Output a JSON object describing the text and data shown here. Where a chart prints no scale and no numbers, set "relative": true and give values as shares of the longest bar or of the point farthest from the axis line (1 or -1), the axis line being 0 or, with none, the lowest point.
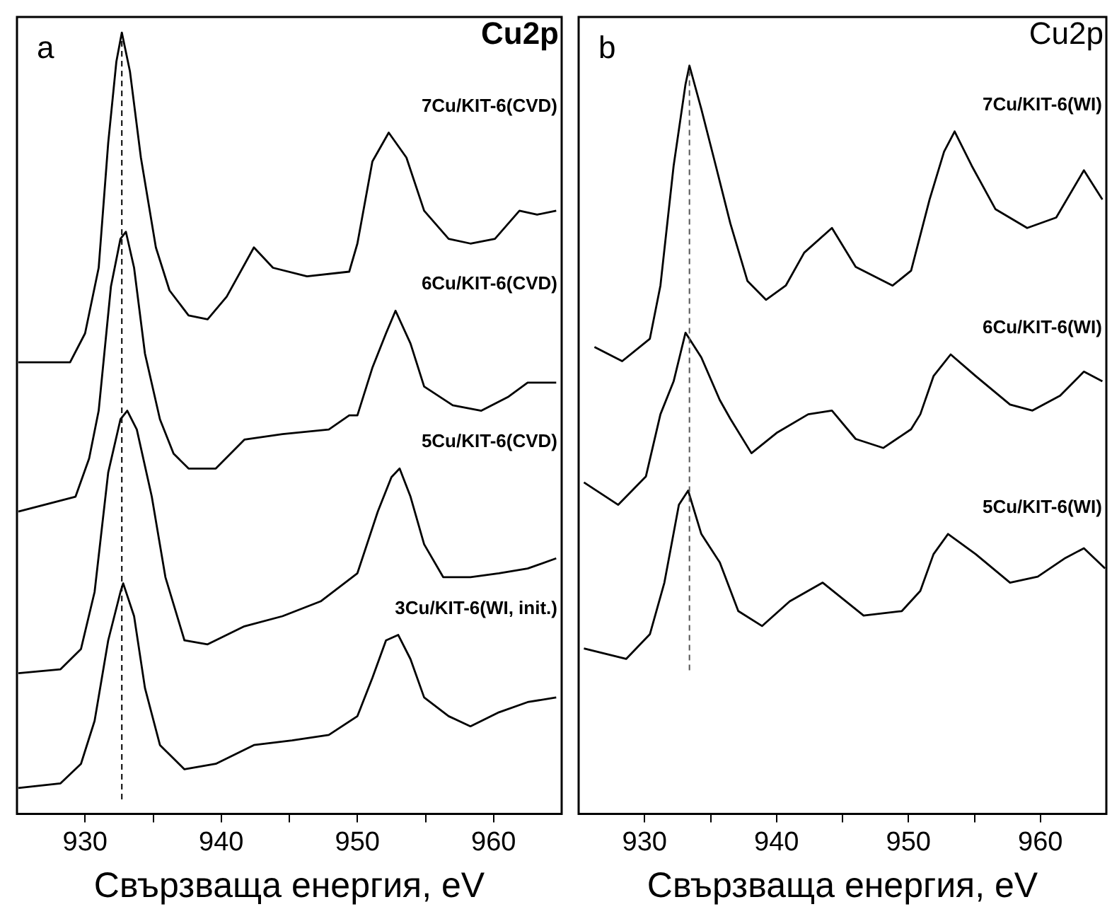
{
  "chart_data": [
    {
      "type": "line",
      "title": "Cu2p",
      "xlabel": "Свързваща енергия, eV",
      "annotations": [
        "a"
      ],
      "relative": true,
      "marker": "none",
      "legend": false,
      "grid": false,
      "tick_labels": "x",
      "xlim": [
        925,
        965
      ],
      "xticks": [
        930,
        {
          "value": 935,
          "label": null
        },
        940,
        {
          "value": 945,
          "label": null
        },
        950,
        {
          "value": 955,
          "label": null
        },
        960
      ],
      "ref_lines": [
        {
          "axis": "x",
          "value": 932.7,
          "color": "#000000",
          "line_style": "dashed"
        }
      ],
      "series": [
        {
          "name": "7Cu/KIT-6(CVD)",
          "color": "#000000",
          "x": [
            925.1,
            927.2,
            928.9,
            930,
            931.0,
            931.7,
            932.3,
            932.7,
            933.3,
            934.1,
            935.2,
            936.2,
            937.6,
            939.0,
            940.4,
            942.4,
            943.8,
            946.3,
            949.4,
            950.0,
            951.1,
            952.3,
            953.6,
            954.9,
            956.7,
            958.3,
            960.1,
            961.9,
            963.2,
            964.6
          ],
          "values": [
            0.578,
            0.578,
            0.578,
            0.615,
            0.699,
            0.859,
            0.963,
            1.0,
            0.95,
            0.84,
            0.725,
            0.67,
            0.638,
            0.633,
            0.662,
            0.725,
            0.699,
            0.688,
            0.694,
            0.73,
            0.835,
            0.872,
            0.84,
            0.772,
            0.736,
            0.73,
            0.736,
            0.772,
            0.767,
            0.772
          ]
        },
        {
          "name": "6Cu/KIT-6(CVD)",
          "color": "#000000",
          "x": [
            925.1,
            929.3,
            930.3,
            931.0,
            931.9,
            932.6,
            933.0,
            933.6,
            934.4,
            935.5,
            936.5,
            937.6,
            939.6,
            941.7,
            944.5,
            947.9,
            949.4,
            950.0,
            951.1,
            952.1,
            952.8,
            953.9,
            954.9,
            957.0,
            959.1,
            961.1,
            962.5,
            964.6
          ],
          "values": [
            0.387,
            0.406,
            0.455,
            0.516,
            0.675,
            0.736,
            0.745,
            0.699,
            0.589,
            0.505,
            0.461,
            0.442,
            0.442,
            0.479,
            0.486,
            0.492,
            0.51,
            0.51,
            0.571,
            0.615,
            0.644,
            0.602,
            0.547,
            0.523,
            0.516,
            0.534,
            0.552,
            0.552
          ]
        },
        {
          "name": "5Cu/KIT-6(CVD)",
          "color": "#000000",
          "x": [
            925.1,
            928.2,
            929.7,
            930.7,
            931.7,
            932.6,
            933.1,
            933.8,
            934.9,
            935.9,
            937.3,
            939.0,
            941.7,
            944.5,
            947.3,
            950.0,
            951.5,
            952.5,
            953.1,
            953.9,
            954.9,
            956.3,
            958.3,
            960.4,
            962.5,
            964.6
          ],
          "values": [
            0.18,
            0.185,
            0.211,
            0.284,
            0.437,
            0.505,
            0.516,
            0.492,
            0.406,
            0.303,
            0.222,
            0.217,
            0.24,
            0.253,
            0.272,
            0.308,
            0.387,
            0.431,
            0.442,
            0.406,
            0.345,
            0.303,
            0.303,
            0.308,
            0.314,
            0.327
          ]
        },
        {
          "name": "3Cu/KIT-6(WI, init.)",
          "color": "#000000",
          "x": [
            925.1,
            928.2,
            929.7,
            930.7,
            931.7,
            932.6,
            932.8,
            933.6,
            934.4,
            935.5,
            937.3,
            939.6,
            942.4,
            945.2,
            947.9,
            950.0,
            951.1,
            952.1,
            953.0,
            953.9,
            954.9,
            956.7,
            958.3,
            960.4,
            962.5,
            964.6
          ],
          "values": [
            0.033,
            0.039,
            0.064,
            0.119,
            0.222,
            0.284,
            0.295,
            0.253,
            0.161,
            0.088,
            0.057,
            0.064,
            0.088,
            0.094,
            0.101,
            0.125,
            0.174,
            0.222,
            0.229,
            0.198,
            0.149,
            0.125,
            0.112,
            0.13,
            0.143,
            0.149
          ]
        }
      ]
    },
    {
      "type": "line",
      "title": "Cu2p",
      "xlabel": "Свързваща енергия, eV",
      "annotations": [
        "b"
      ],
      "relative": true,
      "marker": "none",
      "legend": false,
      "grid": false,
      "tick_labels": "x",
      "xlim": [
        925,
        965
      ],
      "xticks": [
        930,
        {
          "value": 935,
          "label": null
        },
        940,
        {
          "value": 945,
          "label": null
        },
        950,
        {
          "value": 955,
          "label": null
        },
        960
      ],
      "ref_lines": [
        {
          "axis": "x",
          "value": 933.4,
          "color": "#555555",
          "line_style": "dashed"
        }
      ],
      "series": [
        {
          "name": "7Cu/KIT-6(WI)",
          "color": "#000000",
          "x": [
            926.2,
            928.3,
            930.4,
            931.2,
            932.2,
            933.1,
            933.4,
            934.3,
            935.4,
            936.5,
            937.8,
            939.2,
            940.7,
            942.1,
            944.2,
            946.0,
            948.8,
            950.2,
            951.6,
            952.7,
            953.5,
            954.8,
            956.6,
            959.0,
            961.2,
            963.3,
            964.7
          ],
          "values": [
            0.624,
            0.605,
            0.635,
            0.706,
            0.866,
            0.975,
            1.0,
            0.942,
            0.866,
            0.789,
            0.712,
            0.687,
            0.706,
            0.75,
            0.783,
            0.731,
            0.706,
            0.726,
            0.821,
            0.885,
            0.912,
            0.866,
            0.808,
            0.783,
            0.797,
            0.86,
            0.821
          ]
        },
        {
          "name": "6Cu/KIT-6(WI)",
          "color": "#000000",
          "x": [
            925.4,
            928.0,
            930.1,
            931.2,
            932.2,
            933.1,
            934.3,
            935.7,
            936.5,
            938.1,
            940.0,
            942.4,
            944.2,
            946.0,
            948.1,
            950.2,
            950.9,
            951.9,
            953.2,
            955.1,
            957.7,
            959.4,
            961.5,
            963.3,
            964.7
          ],
          "values": [
            0.443,
            0.413,
            0.451,
            0.534,
            0.578,
            0.643,
            0.61,
            0.553,
            0.528,
            0.482,
            0.509,
            0.534,
            0.539,
            0.501,
            0.489,
            0.514,
            0.534,
            0.585,
            0.614,
            0.585,
            0.547,
            0.539,
            0.559,
            0.591,
            0.578
          ]
        },
        {
          "name": "5Cu/KIT-6(WI)",
          "color": "#000000",
          "x": [
            925.4,
            928.6,
            930.4,
            931.5,
            932.6,
            933.3,
            934.3,
            935.7,
            937.1,
            938.9,
            941.0,
            943.5,
            946.6,
            949.5,
            950.9,
            951.9,
            953.0,
            955.1,
            957.7,
            959.8,
            961.9,
            963.3,
            964.9
          ],
          "values": [
            0.221,
            0.207,
            0.24,
            0.309,
            0.413,
            0.432,
            0.374,
            0.336,
            0.271,
            0.251,
            0.284,
            0.309,
            0.265,
            0.271,
            0.298,
            0.347,
            0.374,
            0.347,
            0.309,
            0.317,
            0.342,
            0.355,
            0.328
          ]
        }
      ]
    }
  ]
}
